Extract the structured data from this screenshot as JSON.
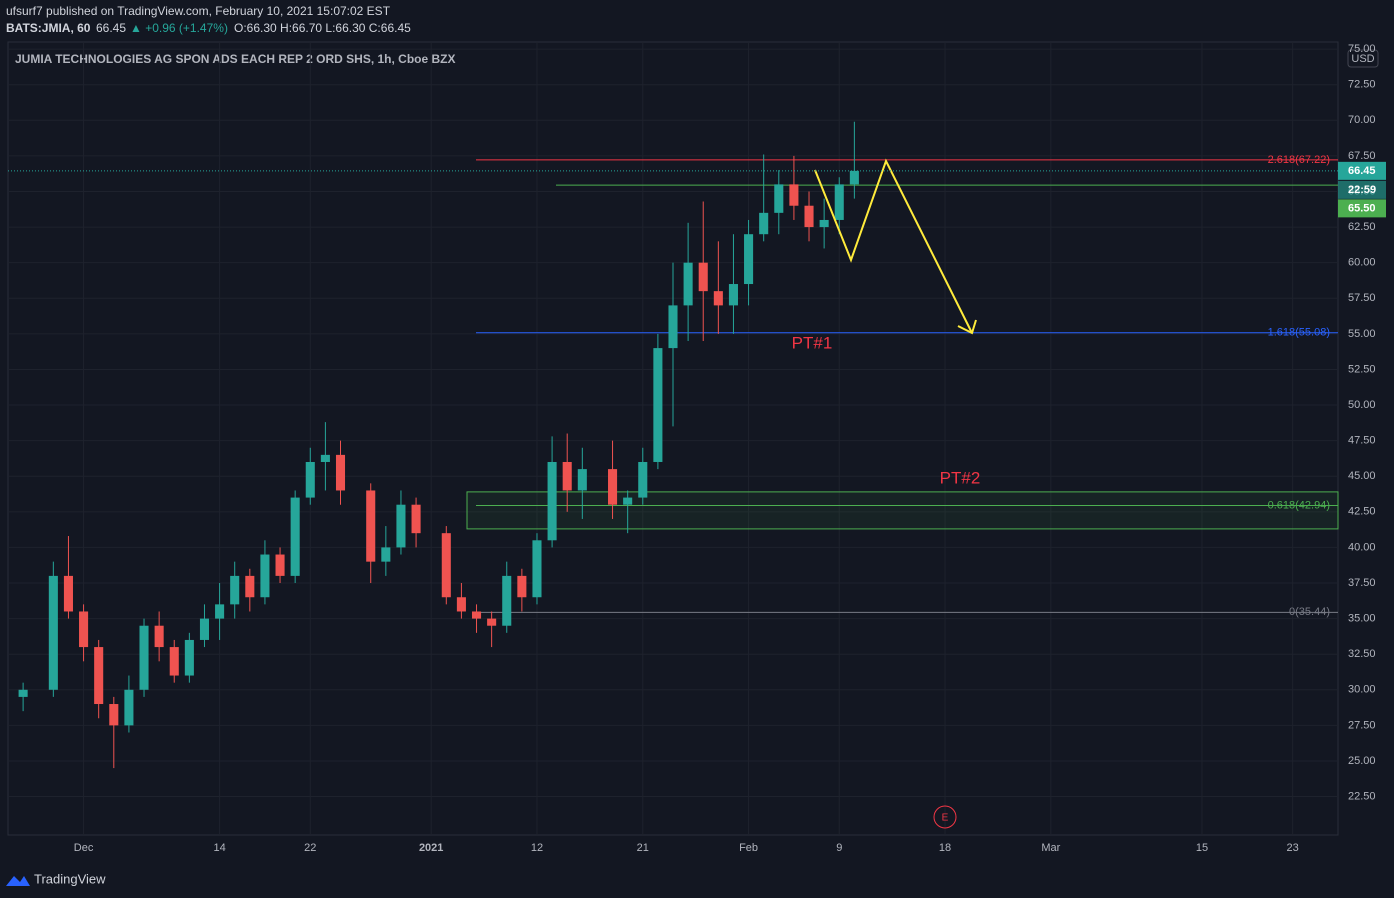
{
  "header": {
    "publisher": "ufsurf7 published on TradingView.com, February 10, 2021 15:07:02 EST",
    "symbol": "BATS:JMIA, 60",
    "last": "66.45",
    "change": "▲ +0.96 (+1.47%)",
    "ohlc": "O:66.30 H:66.70 L:66.30 C:66.45"
  },
  "footer": {
    "brand": "TradingView"
  },
  "chart_data": {
    "type": "candlestick",
    "title": "JUMIA TECHNOLOGIES AG SPON ADS EACH REP 2 ORD SHS, 1h, Cboe BZX",
    "currency": "USD",
    "x": [
      "2020-11-25",
      "2020-11-27",
      "2020-11-30",
      "2020-12-01",
      "2020-12-02",
      "2020-12-03",
      "2020-12-04",
      "2020-12-07",
      "2020-12-08",
      "2020-12-09",
      "2020-12-10",
      "2020-12-11",
      "2020-12-14",
      "2020-12-15",
      "2020-12-16",
      "2020-12-17",
      "2020-12-18",
      "2020-12-21",
      "2020-12-22",
      "2020-12-23",
      "2020-12-24",
      "2020-12-28",
      "2020-12-29",
      "2020-12-30",
      "2020-12-31",
      "2021-01-04",
      "2021-01-05",
      "2021-01-06",
      "2021-01-07",
      "2021-01-08",
      "2021-01-11",
      "2021-01-12",
      "2021-01-13",
      "2021-01-14",
      "2021-01-15",
      "2021-01-19",
      "2021-01-20",
      "2021-01-21",
      "2021-01-22",
      "2021-01-25",
      "2021-01-26",
      "2021-01-27",
      "2021-01-28",
      "2021-01-29",
      "2021-02-01",
      "2021-02-02",
      "2021-02-03",
      "2021-02-04",
      "2021-02-05",
      "2021-02-08",
      "2021-02-09",
      "2021-02-10"
    ],
    "open": [
      29.5,
      30,
      38,
      35.5,
      33,
      29,
      27.5,
      30,
      34.5,
      33,
      31,
      33.5,
      35,
      36,
      38,
      36.5,
      39.5,
      38,
      43.5,
      46,
      46.5,
      44,
      39,
      40,
      43,
      41,
      36.5,
      35.5,
      35,
      34.5,
      38,
      36.5,
      40.5,
      46,
      44,
      45.5,
      43,
      43.5,
      46,
      54,
      57,
      60,
      58,
      57,
      58.5,
      62,
      63.5,
      65.5,
      64,
      62.5,
      63,
      65.5
    ],
    "high": [
      30.5,
      39,
      40.8,
      36,
      33.5,
      29.5,
      31,
      35,
      35.5,
      33.5,
      34,
      36,
      37.5,
      39,
      38.5,
      40.5,
      40,
      44,
      47,
      48.8,
      47.5,
      44.5,
      41.5,
      44,
      43.5,
      41.5,
      37.5,
      36,
      35.5,
      39,
      38.5,
      41,
      47.8,
      48,
      47,
      47.5,
      44,
      47,
      55,
      60,
      62.8,
      64.3,
      61.5,
      62,
      63,
      67.6,
      66.5,
      67.5,
      65,
      64.5,
      66,
      69.9
    ],
    "low": [
      28.5,
      29.5,
      35,
      32,
      28,
      24.5,
      27,
      29.5,
      32,
      30.5,
      30.5,
      33,
      33.5,
      35,
      35.5,
      36,
      37.5,
      37.5,
      43,
      44,
      43,
      37.5,
      38,
      39.5,
      40,
      36,
      35,
      34,
      33,
      34,
      35.5,
      36,
      40,
      42.5,
      42,
      42,
      41,
      43,
      45.5,
      48.5,
      54.5,
      54.5,
      55,
      55,
      57,
      61.5,
      62,
      63,
      61.5,
      61,
      62,
      64.5
    ],
    "close": [
      30,
      38,
      35.5,
      33,
      29,
      27.5,
      30,
      34.5,
      33,
      31,
      33.5,
      35,
      36,
      38,
      36.5,
      39.5,
      38,
      43.5,
      46,
      46.5,
      44,
      39,
      40,
      43,
      41,
      36.5,
      35.5,
      35,
      34.5,
      38,
      36.5,
      40.5,
      46,
      44,
      45.5,
      43,
      43.5,
      46,
      54,
      57,
      60,
      58,
      57,
      58.5,
      62,
      63.5,
      65.5,
      64,
      62.5,
      63,
      65.5,
      66.45
    ],
    "up_color": "#26a69a",
    "down_color": "#ef5350",
    "xlim": [
      "2020-11-24",
      "2021-03-26"
    ],
    "xticks": [
      {
        "value": "2020-12-01",
        "label": "Dec"
      },
      {
        "value": "2020-12-14",
        "label": "14"
      },
      {
        "value": "2020-12-22",
        "label": "22"
      },
      {
        "value": "2021-01-01",
        "label": "2021"
      },
      {
        "value": "2021-01-12",
        "label": "12"
      },
      {
        "value": "2021-01-21",
        "label": "21"
      },
      {
        "value": "2021-02-01",
        "label": "Feb"
      },
      {
        "value": "2021-02-09",
        "label": "9"
      },
      {
        "value": "2021-02-18",
        "label": "18"
      },
      {
        "value": "2021-03-01",
        "label": "Mar"
      },
      {
        "value": "2021-03-15",
        "label": "15"
      },
      {
        "value": "2021-03-23",
        "label": "23"
      }
    ],
    "ylim": [
      19.8,
      75.5
    ],
    "yticks": [
      {
        "value": 22.5,
        "label": "22.50"
      },
      {
        "value": 25,
        "label": "25.00"
      },
      {
        "value": 27.5,
        "label": "27.50"
      },
      {
        "value": 30,
        "label": "30.00"
      },
      {
        "value": 32.5,
        "label": "32.50"
      },
      {
        "value": 35,
        "label": "35.00"
      },
      {
        "value": 37.5,
        "label": "37.50"
      },
      {
        "value": 40,
        "label": "40.00"
      },
      {
        "value": 42.5,
        "label": "42.50"
      },
      {
        "value": 45,
        "label": "45.00"
      },
      {
        "value": 47.5,
        "label": "47.50"
      },
      {
        "value": 50,
        "label": "50.00"
      },
      {
        "value": 52.5,
        "label": "52.50"
      },
      {
        "value": 55,
        "label": "55.00"
      },
      {
        "value": 57.5,
        "label": "57.50"
      },
      {
        "value": 60,
        "label": "60.00"
      },
      {
        "value": 62.5,
        "label": "62.50"
      },
      {
        "value": 65,
        "label": "65.00"
      },
      {
        "value": 67.5,
        "label": "67.50"
      },
      {
        "value": 70,
        "label": "70.00"
      },
      {
        "value": 72.5,
        "label": "72.50"
      },
      {
        "value": 75,
        "label": "75.00"
      }
    ],
    "grid": true,
    "fib_levels": [
      {
        "label": "2.618(67.22)",
        "price": 67.22,
        "color": "#f23645"
      },
      {
        "label": "1.618(55.08)",
        "price": 55.08,
        "color": "#2962ff"
      },
      {
        "label": "0.618(42.94)",
        "price": 42.94,
        "color": "#4caf50"
      },
      {
        "label": "0(35.44)",
        "price": 35.44,
        "color": "#787b86"
      }
    ],
    "resistance": {
      "price": 65.45,
      "color": "#4caf50"
    },
    "zone": {
      "low": 41.3,
      "high": 43.9,
      "color": "#4caf50"
    },
    "annotations": [
      {
        "text": "PT#1",
        "price": 54.3
      },
      {
        "text": "PT#2",
        "price": 44.8
      }
    ],
    "price_tags": [
      {
        "value": 66.45,
        "label": "66.45",
        "color": "#26a69a"
      },
      {
        "value": 65.5,
        "label": "65.50",
        "color": "#4caf50"
      }
    ],
    "countdown": "22:59",
    "earnings_marker": "E"
  }
}
